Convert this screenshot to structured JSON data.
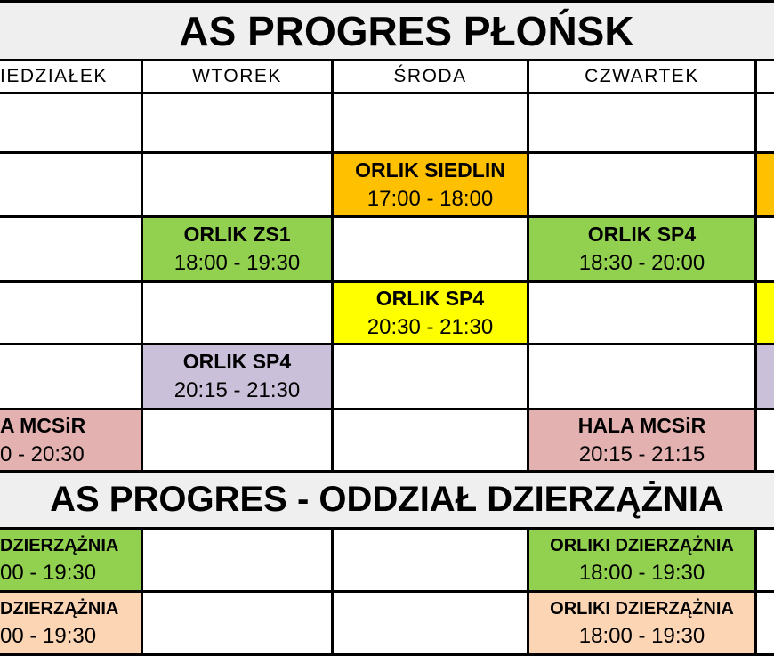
{
  "colors": {
    "orange": "#FFC000",
    "green": "#92D050",
    "yellow": "#FFFF00",
    "lavender": "#CBC0DA",
    "pink": "#E3B1B0",
    "peach": "#FCD5B4",
    "band": "#F0EFEF",
    "border": "#000000",
    "cell_bg": "#FFFFFF"
  },
  "plonsk": {
    "title": "AS PROGRES PŁOŃSK",
    "days": {
      "monday": "IEDZIAŁEK",
      "tuesday": "WTOREK",
      "wednesday": "ŚRODA",
      "thursday": "CZWARTEK",
      "friday": ""
    },
    "events": {
      "siedlin_wed": {
        "venue": "ORLIK SIEDLIN",
        "time": "17:00 - 18:00"
      },
      "zs1_tue": {
        "venue": "ORLIK ZS1",
        "time": "18:00 - 19:30"
      },
      "sp4_thu": {
        "venue": "ORLIK SP4",
        "time": "18:30 - 20:00"
      },
      "sp4_wed": {
        "venue": "ORLIK SP4",
        "time": "20:30 - 21:30"
      },
      "sp4_tue": {
        "venue": "ORLIK SP4",
        "time": "20:15 - 21:30"
      },
      "mcsir_mon": {
        "venue": "A MCSiR",
        "time": "0 - 20:30"
      },
      "mcsir_thu": {
        "venue": "HALA MCSiR",
        "time": "20:15 - 21:15"
      }
    }
  },
  "dzierzaznia": {
    "title": "AS PROGRES - ODDZIAŁ DZIERZĄŻNIA",
    "events": {
      "orliki_row1_mon": {
        "venue": "DZIERZĄŻNIA",
        "time": "00 - 19:30"
      },
      "orliki_row1_thu": {
        "venue": "ORLIKI DZIERZĄŻNIA",
        "time": "18:00 - 19:30"
      },
      "orliki_row2_mon": {
        "venue": "DZIERZĄŻNIA",
        "time": "00 - 19:30"
      },
      "orliki_row2_thu": {
        "venue": "ORLIKI DZIERZĄŻNIA",
        "time": "18:00 - 19:30"
      }
    }
  }
}
